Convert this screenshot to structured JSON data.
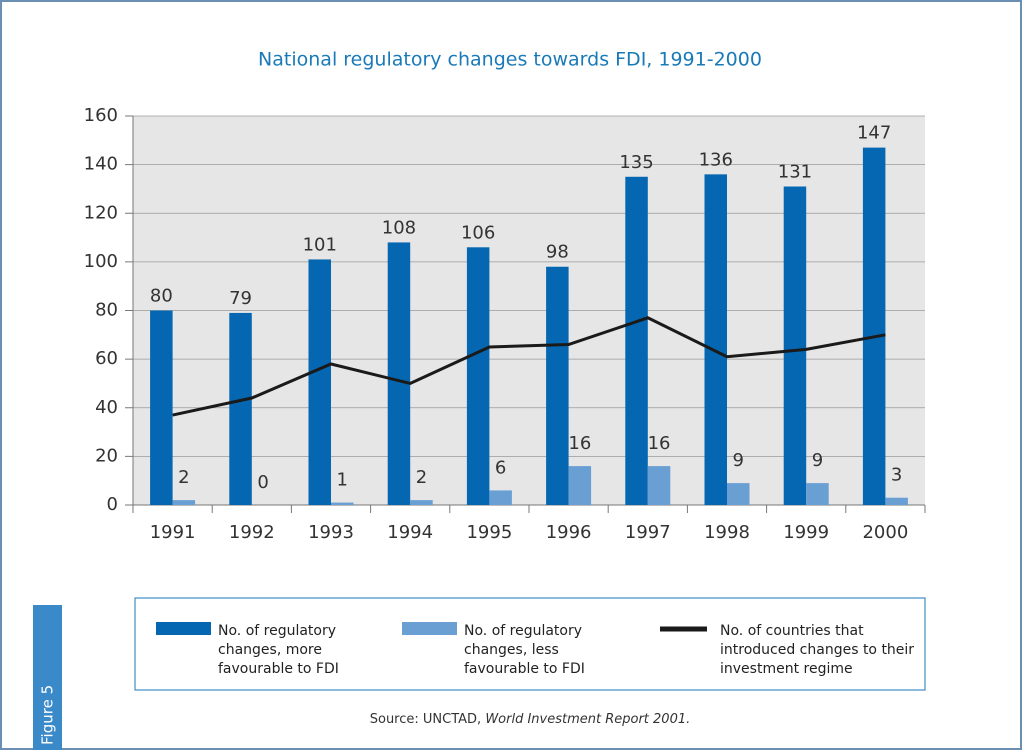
{
  "chart_data": {
    "type": "bar",
    "title": "National regulatory changes towards FDI, 1991-2000",
    "categories": [
      "1991",
      "1992",
      "1993",
      "1994",
      "1995",
      "1996",
      "1997",
      "1998",
      "1999",
      "2000"
    ],
    "series": [
      {
        "name": "No. of regulatory changes, more favourable to FDI",
        "color": "#0567b1",
        "type": "bar",
        "values": [
          80,
          79,
          101,
          108,
          106,
          98,
          135,
          136,
          131,
          147
        ]
      },
      {
        "name": "No. of regulatory changes, less favourable to FDI",
        "color": "#6a9fd4",
        "type": "bar",
        "values": [
          2,
          0,
          1,
          2,
          6,
          16,
          16,
          9,
          9,
          3
        ]
      },
      {
        "name": "No. of countries that introduced changes to their investment regime",
        "color": "#1a1a1a",
        "type": "line",
        "values": [
          37,
          44,
          58,
          50,
          65,
          66,
          77,
          61,
          64,
          70
        ]
      }
    ],
    "ylim": [
      0,
      160
    ],
    "yticks": [
      0,
      20,
      40,
      60,
      80,
      100,
      120,
      140,
      160
    ],
    "grid": true,
    "source_prefix": "Source: UNCTAD, ",
    "source_title": "World Investment Report 2001.",
    "figure_label": "Figure 5"
  }
}
